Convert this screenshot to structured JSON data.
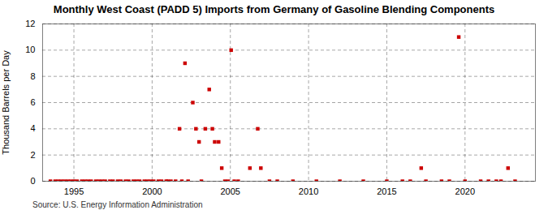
{
  "chart_data": {
    "type": "scatter",
    "title": "Monthly West Coast (PADD 5) Imports from Germany of Gasoline Blending Components",
    "ylabel": "Thousand Barrels per Day",
    "source": "Source: U.S. Energy Information Administration",
    "x": [
      1993.5,
      1993.8,
      1994.0,
      1994.2,
      1994.4,
      1994.6,
      1994.8,
      1995.0,
      1995.2,
      1995.5,
      1995.7,
      1995.9,
      1996.1,
      1996.4,
      1996.6,
      1996.8,
      1997.0,
      1997.3,
      1997.5,
      1997.8,
      1998.0,
      1998.3,
      1998.5,
      1998.8,
      1999.0,
      1999.2,
      1999.5,
      1999.7,
      1999.9,
      2000.1,
      2000.4,
      2000.6,
      2000.9,
      2001.0,
      2001.2,
      2001.5,
      2001.75,
      2001.9,
      2002.1,
      2002.3,
      2002.6,
      2002.8,
      2003.0,
      2003.15,
      2003.4,
      2003.65,
      2003.85,
      2004.0,
      2004.25,
      2004.45,
      2004.65,
      2004.85,
      2005.05,
      2005.25,
      2005.5,
      2006.25,
      2006.75,
      2006.95,
      2007.5,
      2008.0,
      2009.0,
      2010.5,
      2012.0,
      2013.5,
      2015.0,
      2016.0,
      2016.5,
      2017.2,
      2017.5,
      2018.5,
      2019.0,
      2019.6,
      2020.0,
      2021.0,
      2021.5,
      2022.0,
      2022.3,
      2022.75,
      2023.2
    ],
    "values": [
      0,
      0,
      0,
      0,
      0,
      0,
      0,
      0,
      0,
      0,
      0,
      0,
      0,
      0,
      0,
      0,
      0,
      0,
      0,
      0,
      0,
      0,
      0,
      0,
      0,
      0,
      0,
      0,
      0,
      0,
      0,
      0,
      0,
      0,
      0,
      0,
      4,
      0,
      9,
      0,
      6,
      4,
      3,
      0,
      4,
      7,
      4,
      3,
      3,
      1,
      0,
      0,
      10,
      0,
      0,
      1,
      4,
      1,
      0,
      0,
      0,
      0,
      0,
      0,
      0,
      0,
      0,
      1,
      0,
      0,
      0,
      11,
      0,
      0,
      0,
      0,
      0,
      1,
      0
    ],
    "color": "#cc0000",
    "marker": "square",
    "xlim": [
      1993.0,
      2024.5
    ],
    "xticks": [
      1995,
      2000,
      2005,
      2010,
      2015,
      2020
    ],
    "ylim": [
      0,
      12
    ],
    "yticks": [
      0,
      2,
      4,
      6,
      8,
      10,
      12
    ],
    "grid": true
  }
}
